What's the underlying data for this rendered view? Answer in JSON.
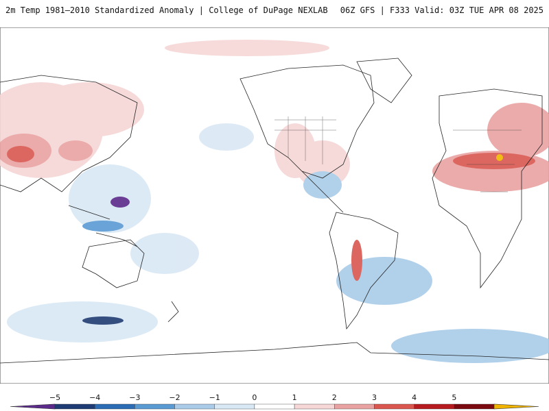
{
  "header": {
    "left_title": "2m Temp 1981–2010 Standardized Anomaly | College of DuPage NEXLAB",
    "right_title": "06Z GFS | F333 Valid: 03Z TUE APR 08 2025"
  },
  "colorbar": {
    "ticks": [
      "−5",
      "−4",
      "−3",
      "−2",
      "−1",
      "0",
      "1",
      "2",
      "3",
      "4",
      "5"
    ],
    "colors": [
      "#5b2a8a",
      "#1f3b73",
      "#2b6cb5",
      "#5a9ad3",
      "#a9cbe8",
      "#d9e8f5",
      "#ffffff",
      "#f6d6d6",
      "#e9a2a2",
      "#d9574f",
      "#b51b1f",
      "#7a0a0f",
      "#f0b400"
    ]
  }
}
